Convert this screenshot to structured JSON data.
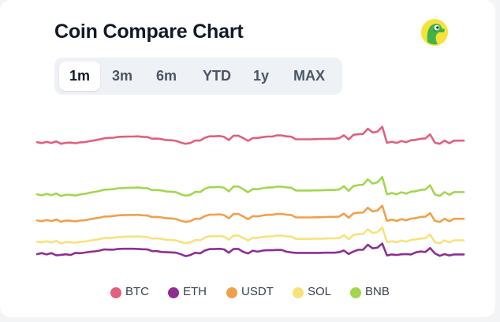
{
  "header": {
    "title": "Coin Compare Chart",
    "logo_icon": "coingecko-gecko-icon"
  },
  "tabs": [
    {
      "label": "1m",
      "active": true
    },
    {
      "label": "3m",
      "active": false
    },
    {
      "label": "6m",
      "active": false
    },
    {
      "label": "YTD",
      "active": false
    },
    {
      "label": "1y",
      "active": false
    },
    {
      "label": "MAX",
      "active": false
    }
  ],
  "legend": [
    {
      "label": "BTC",
      "color": "#e0607e"
    },
    {
      "label": "ETH",
      "color": "#8e2f8f"
    },
    {
      "label": "USDT",
      "color": "#f0a04b"
    },
    {
      "label": "SOL",
      "color": "#f7e27a"
    },
    {
      "label": "BNB",
      "color": "#a3d64f"
    }
  ],
  "chart_data": {
    "type": "line",
    "title": "Coin Compare Chart",
    "period": "1m",
    "grid": false,
    "axes_visible": false,
    "legend_position": "bottom-center",
    "x": [
      1,
      2,
      3,
      4,
      5,
      6,
      7,
      8,
      9,
      10,
      11,
      12,
      13,
      14,
      15,
      16,
      17,
      18,
      19,
      20,
      21,
      22,
      23,
      24,
      25,
      26,
      27,
      28,
      29,
      30,
      31,
      32,
      33,
      34,
      35,
      36,
      37,
      38,
      39,
      40,
      41,
      42,
      43,
      44,
      45,
      46,
      47,
      48,
      49,
      50,
      51,
      52,
      53,
      54,
      55,
      56,
      57,
      58,
      59,
      60,
      61,
      62,
      63,
      64,
      65,
      66,
      67,
      68,
      69,
      70,
      71,
      72,
      73,
      74,
      75,
      76,
      77,
      78,
      79,
      80,
      81,
      82,
      83,
      84,
      85,
      86,
      87,
      88,
      89,
      90
    ],
    "series": [
      {
        "name": "BTC",
        "color": "#e0607e",
        "values": [
          -0.1,
          -0.6,
          0.1,
          -0.5,
          0.4,
          -1,
          -0.4,
          -0.3,
          -0.7,
          -0.2,
          0,
          0.5,
          1,
          1.5,
          2.2,
          2.4,
          2.5,
          3,
          3.1,
          3.2,
          3.2,
          3.3,
          3,
          2.9,
          1.9,
          2,
          1.7,
          1.1,
          1.1,
          0.7,
          -0.3,
          -1,
          -0.5,
          0.9,
          0.8,
          2.5,
          3.3,
          3.3,
          3.5,
          3,
          1.2,
          3.7,
          3.7,
          2.3,
          0.7,
          2.3,
          2.3,
          2.8,
          3.2,
          3.2,
          3.8,
          3.8,
          3.3,
          3.1,
          1.6,
          1.6,
          1.6,
          1.6,
          1.7,
          1.8,
          1.8,
          1.9,
          1.9,
          2.2,
          3.9,
          1.5,
          4.2,
          4.5,
          4.7,
          7.7,
          5.5,
          6,
          8.8,
          -0.4,
          0.2,
          -0.5,
          0.6,
          -0.1,
          1,
          1.3,
          1.9,
          2.1,
          4.4,
          -0.4,
          -1,
          0.8,
          -0.7,
          0.8,
          0.8,
          0.8
        ]
      },
      {
        "name": "ETH",
        "color": "#8e2f8f",
        "values": [
          -0.9,
          -0.3,
          -1.1,
          -0.3,
          -1.6,
          -1.3,
          -1,
          -1.4,
          -0.2,
          -0.4,
          0,
          0.4,
          0.7,
          1.1,
          1.8,
          1.7,
          1.7,
          2.1,
          2.2,
          2.2,
          2.2,
          2.1,
          1.9,
          1.8,
          0.8,
          0.8,
          0.3,
          0.2,
          0.1,
          -0.1,
          -1,
          -2.1,
          -1.4,
          -0.1,
          -0.5,
          1.2,
          2,
          2,
          2.2,
          1.8,
          -0.1,
          2.1,
          2.1,
          0.4,
          -0.5,
          1.1,
          0.5,
          1.1,
          1.4,
          1.3,
          1.5,
          1.5,
          0.5,
          0.1,
          -0.2,
          -0.2,
          -0.2,
          -0.2,
          -0.2,
          -0.2,
          -0.1,
          -0.1,
          -0.1,
          0.2,
          1.2,
          -0.8,
          0.6,
          1.6,
          1.6,
          4.5,
          2.4,
          2.8,
          5.2,
          -1.7,
          -1.1,
          -1.4,
          -1,
          -0.9,
          -1.1,
          0.1,
          0.6,
          0.3,
          2.6,
          -0.5,
          -1.9,
          -0.9,
          -1.7,
          -1.1,
          -1.1,
          -1.1
        ]
      },
      {
        "name": "USDT",
        "color": "#f0a04b",
        "values": [
          -0.2,
          -0.6,
          0.1,
          -0.5,
          0.4,
          -0.9,
          -0.2,
          -0.3,
          -0.7,
          -0.2,
          0,
          0.5,
          1,
          1.4,
          2.1,
          2.2,
          2.4,
          2.8,
          2.9,
          3,
          3,
          3.1,
          2.8,
          2.7,
          1.8,
          1.9,
          1.6,
          1.1,
          1,
          0.7,
          -0.3,
          -1,
          -0.5,
          0.8,
          0.8,
          2.4,
          3.2,
          3.2,
          3.4,
          2.9,
          1.1,
          3.6,
          3.6,
          2.2,
          0.6,
          2.3,
          2.2,
          2.7,
          3.1,
          3.1,
          3.6,
          3.6,
          3.2,
          3,
          1.6,
          1.6,
          1.6,
          1.6,
          1.7,
          1.7,
          1.8,
          1.9,
          1.9,
          2.1,
          3.8,
          1.4,
          3.9,
          4.3,
          4.4,
          7.2,
          5,
          5.6,
          8.3,
          -0.4,
          0.3,
          -0.4,
          0.6,
          -0.1,
          0.9,
          1.2,
          1.8,
          2,
          4.1,
          -0.4,
          -1,
          0.8,
          -0.6,
          0.8,
          0.8,
          0.8
        ]
      },
      {
        "name": "SOL",
        "color": "#f7e27a",
        "values": [
          -0.1,
          -0.5,
          0.1,
          -0.6,
          0.3,
          -1,
          -0.3,
          -0.4,
          -0.7,
          -0.2,
          0,
          0.5,
          0.9,
          1.3,
          2,
          2.1,
          2.2,
          2.6,
          2.7,
          2.8,
          2.8,
          2.9,
          2.7,
          2.6,
          1.7,
          1.8,
          1.5,
          1,
          0.9,
          0.6,
          -0.3,
          -1,
          -0.5,
          0.8,
          0.7,
          2.3,
          3,
          3,
          3.2,
          2.8,
          1,
          3.4,
          3.4,
          2.1,
          0.6,
          2.1,
          2.1,
          2.6,
          2.9,
          2.9,
          3.4,
          3.4,
          3,
          2.9,
          1.5,
          1.5,
          1.5,
          1.5,
          1.6,
          1.6,
          1.7,
          1.8,
          1.8,
          2,
          3.6,
          1.3,
          3.8,
          4.2,
          4.3,
          7,
          4.9,
          5.4,
          8.1,
          -0.4,
          0.2,
          -0.5,
          0.6,
          -0.1,
          0.9,
          1.2,
          1.7,
          1.9,
          4,
          -0.4,
          -1,
          0.7,
          -0.6,
          0.7,
          0.7,
          0.7
        ]
      },
      {
        "name": "BNB",
        "color": "#a3d64f",
        "values": [
          -0.1,
          -0.7,
          0.2,
          -0.6,
          0.4,
          -1.1,
          -0.3,
          -0.4,
          -0.8,
          -0.2,
          0.2,
          0.8,
          1.3,
          1.8,
          2.6,
          2.7,
          2.9,
          3.4,
          3.5,
          3.7,
          3.7,
          3.8,
          3.5,
          3.4,
          2.3,
          2.4,
          2.1,
          1.5,
          1.4,
          1.1,
          -0.1,
          -0.9,
          -0.3,
          1.3,
          1.2,
          3.1,
          4,
          4,
          4.2,
          3.7,
          1.6,
          4.4,
          4.4,
          2.8,
          1.1,
          2.9,
          2.8,
          3.4,
          3.8,
          3.8,
          4.3,
          4.3,
          3.9,
          3.7,
          2.1,
          2.1,
          2.1,
          2.1,
          2.2,
          2.2,
          2.3,
          2.4,
          2.4,
          2.7,
          4.6,
          1.9,
          4.7,
          5.2,
          5.4,
          8.5,
          6.1,
          6.8,
          9.9,
          -0.1,
          0.7,
          -0.1,
          1.1,
          0.3,
          1.4,
          1.7,
          2.4,
          2.7,
          5.1,
          -0.2,
          -1,
          1.2,
          -0.4,
          1.2,
          1.2,
          1.2
        ]
      }
    ]
  }
}
